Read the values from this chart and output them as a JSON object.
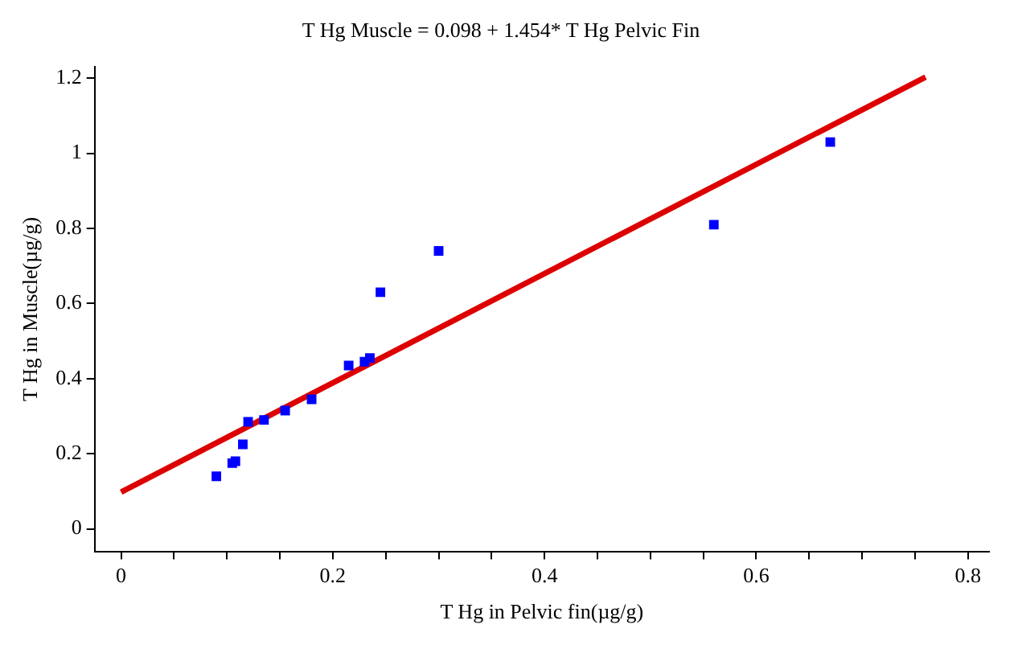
{
  "chart_data": {
    "type": "scatter",
    "title": "T Hg Muscle = 0.098 + 1.454* T Hg Pelvic Fin",
    "xlabel": "T Hg in Pelvic fin(µg/g)",
    "ylabel": "T Hg in Muscle(µg/g)",
    "xlim": [
      -0.025,
      0.82
    ],
    "ylim": [
      -0.06,
      1.23
    ],
    "xticks": [
      0,
      {
        "value": 0.05,
        "label": null
      },
      {
        "value": 0.1,
        "label": null
      },
      {
        "value": 0.15,
        "label": null
      },
      0.2,
      {
        "value": 0.25,
        "label": null
      },
      {
        "value": 0.3,
        "label": null
      },
      {
        "value": 0.35,
        "label": null
      },
      0.4,
      {
        "value": 0.45,
        "label": null
      },
      {
        "value": 0.5,
        "label": null
      },
      {
        "value": 0.55,
        "label": null
      },
      0.6,
      {
        "value": 0.65,
        "label": null
      },
      {
        "value": 0.7,
        "label": null
      },
      {
        "value": 0.75,
        "label": null
      },
      0.8
    ],
    "yticks": [
      0,
      0.2,
      0.4,
      0.6,
      0.8,
      1,
      1.2
    ],
    "grid": false,
    "legend": false,
    "series": [
      {
        "color": "#0000ff",
        "marker": "square",
        "x": [
          0.09,
          0.105,
          0.108,
          0.115,
          0.12,
          0.135,
          0.155,
          0.18,
          0.215,
          0.23,
          0.235,
          0.245,
          0.3,
          0.56,
          0.67
        ],
        "values": [
          0.14,
          0.175,
          0.18,
          0.225,
          0.285,
          0.29,
          0.315,
          0.345,
          0.435,
          0.445,
          0.455,
          0.63,
          0.74,
          0.81,
          1.03
        ]
      },
      {
        "type": "line",
        "color": "#dd0000",
        "marker": "none",
        "line_style": "solid",
        "x": [
          0,
          0.76
        ],
        "values": [
          0.098,
          1.203
        ]
      }
    ]
  }
}
